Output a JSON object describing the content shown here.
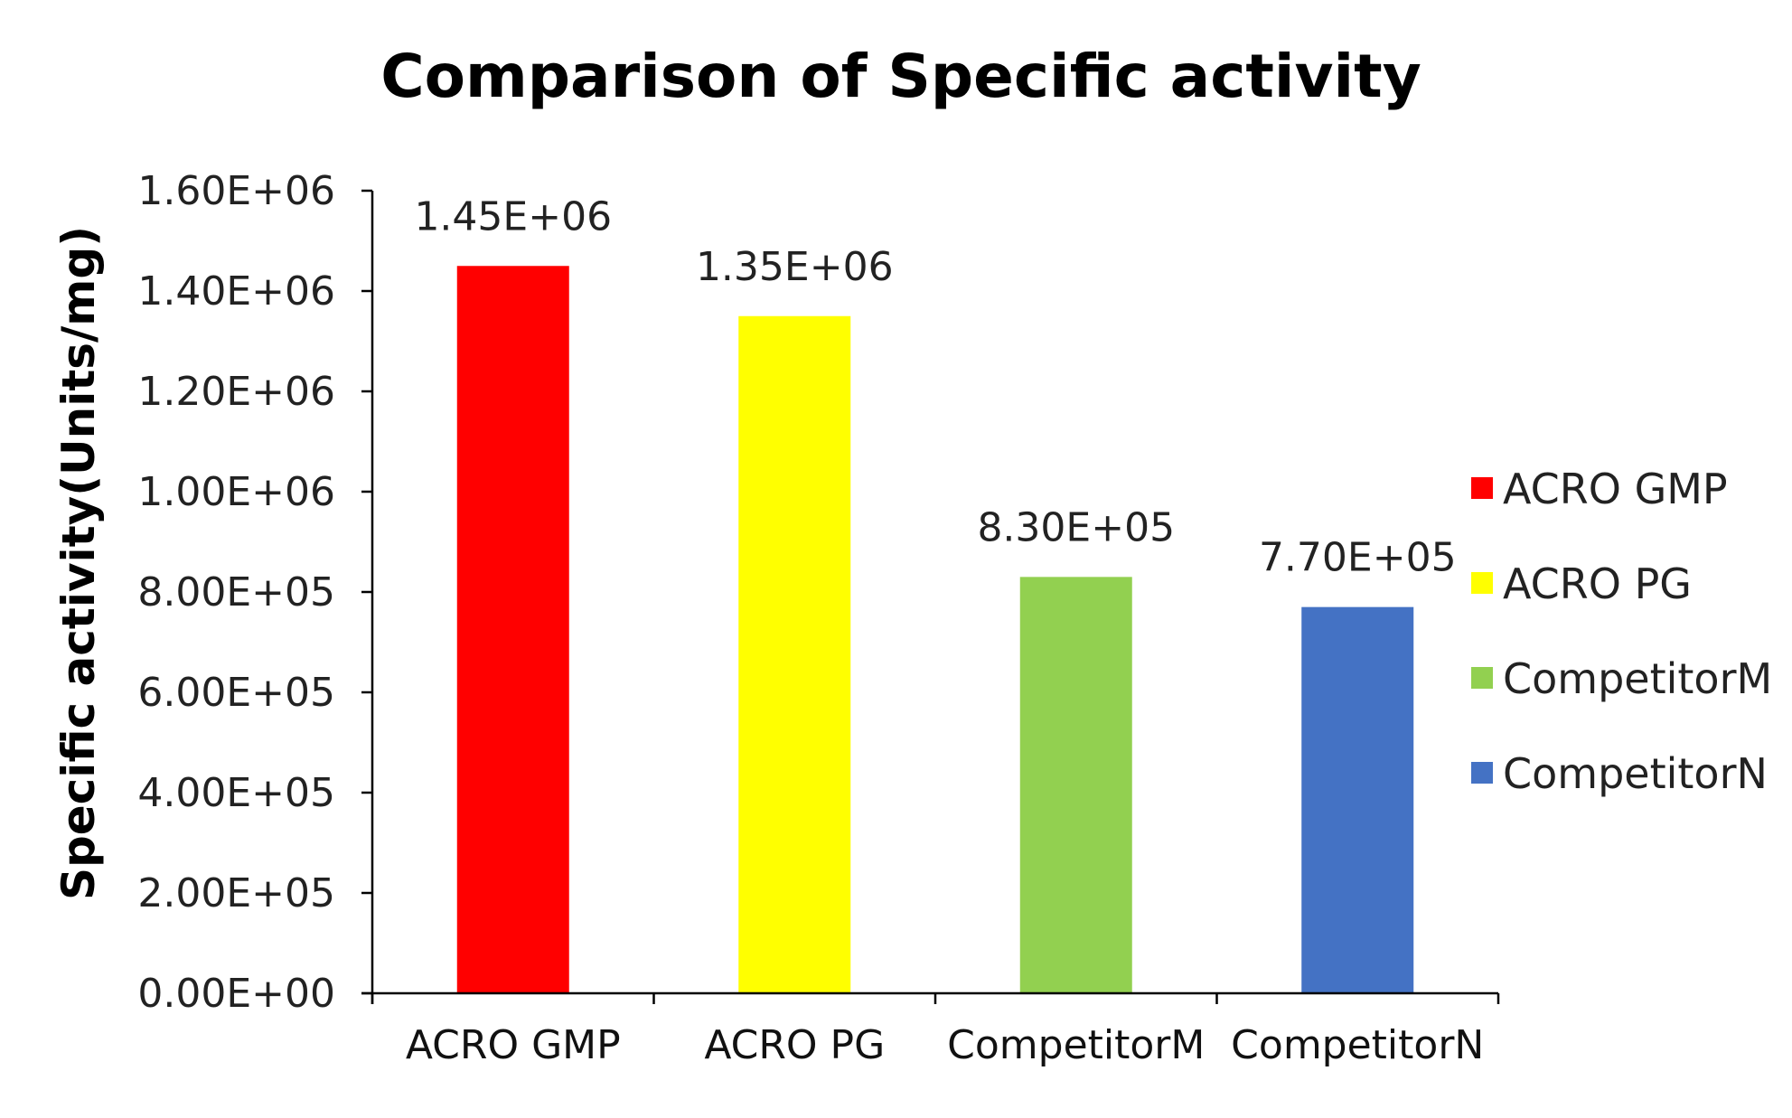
{
  "chart_data": {
    "type": "bar",
    "title": "Comparison of Specific activity",
    "xlabel": "",
    "ylabel": "Specific activity(Units/mg)",
    "categories": [
      "ACRO GMP",
      "ACRO PG",
      "CompetitorM",
      "CompetitorN"
    ],
    "values": [
      1450000,
      1350000,
      830000,
      770000
    ],
    "data_labels": [
      "1.45E+06",
      "1.35E+06",
      "8.30E+05",
      "7.70E+05"
    ],
    "colors": [
      "#ff0000",
      "#ffff00",
      "#92d050",
      "#4472c4"
    ],
    "ylim": [
      0,
      1600000
    ],
    "y_ticks": [
      0,
      200000,
      400000,
      600000,
      800000,
      1000000,
      1200000,
      1400000,
      1600000
    ],
    "y_tick_labels": [
      "0.00E+00",
      "2.00E+05",
      "4.00E+05",
      "6.00E+05",
      "8.00E+05",
      "1.00E+06",
      "1.20E+06",
      "1.40E+06",
      "1.60E+06"
    ],
    "grid": false,
    "legend": {
      "position": "right",
      "entries": [
        "ACRO GMP",
        "ACRO PG",
        "CompetitorM",
        "CompetitorN"
      ]
    }
  }
}
